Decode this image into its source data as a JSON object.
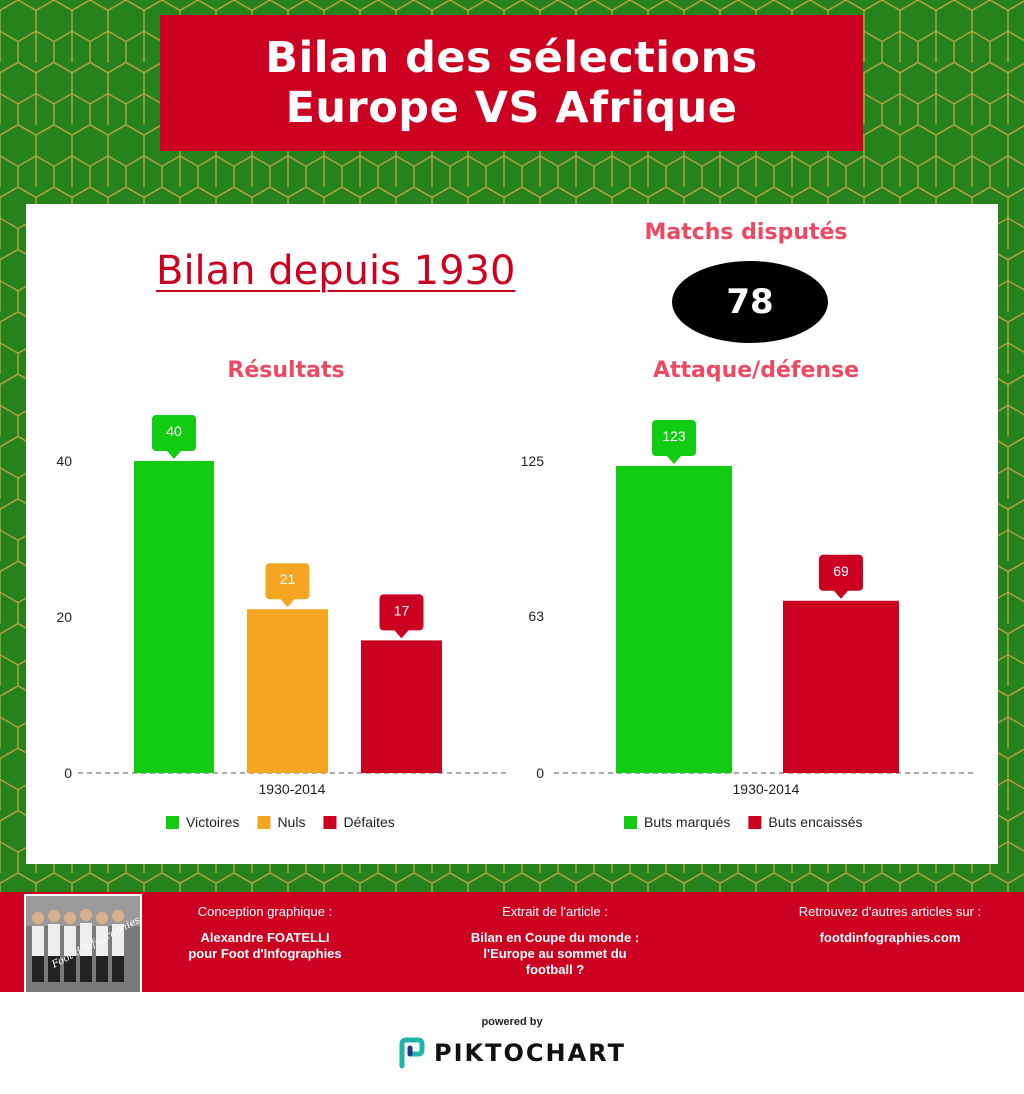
{
  "header": {
    "title_line1": "Bilan des sélections",
    "title_line2": "Europe VS Afrique"
  },
  "panel": {
    "bilan_title": "Bilan depuis 1930",
    "matchs_title": "Matchs disputés",
    "matchs_value": "78"
  },
  "colors": {
    "green": "#11cc11",
    "orange": "#f4a623",
    "red": "#cc0020",
    "pink": "#ec4a63",
    "field": "#25821d"
  },
  "chart_data": [
    {
      "type": "bar",
      "title": "Résultats",
      "xlabel": "1930-2014",
      "yticks": [
        "0",
        "20",
        "40"
      ],
      "ylim": [
        0,
        40
      ],
      "categories": [
        "1930-2014"
      ],
      "series": [
        {
          "name": "Victoires",
          "value": 40,
          "label": "40",
          "color": "#11cc11"
        },
        {
          "name": "Nuls",
          "value": 21,
          "label": "21",
          "color": "#f4a623"
        },
        {
          "name": "Défaites",
          "value": 17,
          "label": "17",
          "color": "#cc0020"
        }
      ],
      "legend": "bottom"
    },
    {
      "type": "bar",
      "title": "Attaque/défense",
      "xlabel": "1930-2014",
      "yticks": [
        "0",
        "63",
        "125"
      ],
      "ylim": [
        0,
        125
      ],
      "categories": [
        "1930-2014"
      ],
      "series": [
        {
          "name": "Buts marqués",
          "value": 123,
          "label": "123",
          "color": "#11cc11"
        },
        {
          "name": "Buts encaissés",
          "value": 69,
          "label": "69",
          "color": "#cc0020"
        }
      ],
      "legend": "bottom"
    }
  ],
  "footer": {
    "col1_label": "Conception graphique :",
    "col1_line1": "Alexandre FOATELLI",
    "col1_line2": "pour Foot d'Infographies",
    "col2_label": "Extrait de l'article :",
    "col2_line1": "Bilan en Coupe du monde :",
    "col2_line2": "l'Europe au sommet du",
    "col2_line3": "football ?",
    "col3_label": "Retrouvez d'autres articles sur :",
    "col3_line1": "footdinfographies.com",
    "photo_caption": "Foot d'infographies"
  },
  "brand": {
    "powered": "powered by",
    "name": "PIKTOCHART"
  }
}
